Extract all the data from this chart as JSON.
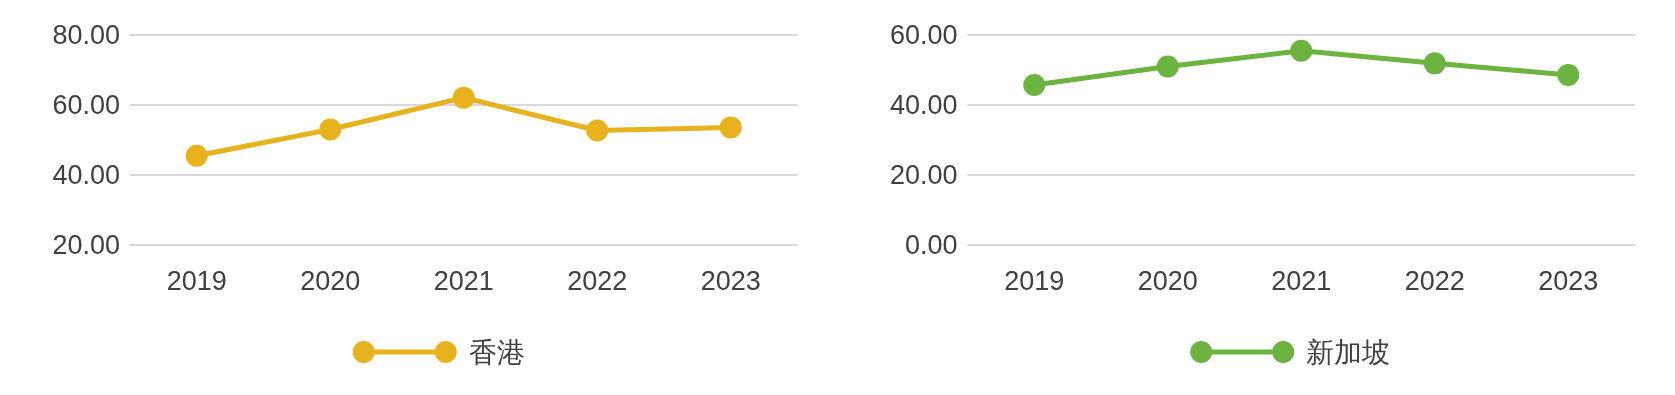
{
  "chart_data": [
    {
      "type": "line",
      "categories": [
        "2019",
        "2020",
        "2021",
        "2022",
        "2023"
      ],
      "series": [
        {
          "name": "香港",
          "color": "#e8b21f",
          "values": [
            45.5,
            53.0,
            62.1,
            52.7,
            53.6
          ]
        }
      ],
      "ylim": [
        20,
        80
      ],
      "yticks": [
        {
          "value": 20,
          "label": "20.00"
        },
        {
          "value": 40,
          "label": "40.00"
        },
        {
          "value": 60,
          "label": "60.00"
        },
        {
          "value": 80,
          "label": "80.00"
        }
      ],
      "grid": "y",
      "legend": "bottom",
      "marker": "circle"
    },
    {
      "type": "line",
      "categories": [
        "2019",
        "2020",
        "2021",
        "2022",
        "2023"
      ],
      "series": [
        {
          "name": "新加坡",
          "color": "#6db33f",
          "values": [
            45.7,
            51.0,
            55.5,
            51.9,
            48.6
          ]
        }
      ],
      "ylim": [
        0,
        60
      ],
      "yticks": [
        {
          "value": 0,
          "label": "0.00"
        },
        {
          "value": 20,
          "label": "20.00"
        },
        {
          "value": 40,
          "label": "40.00"
        },
        {
          "value": 60,
          "label": "60.00"
        }
      ],
      "grid": "y",
      "legend": "bottom",
      "marker": "circle"
    }
  ]
}
